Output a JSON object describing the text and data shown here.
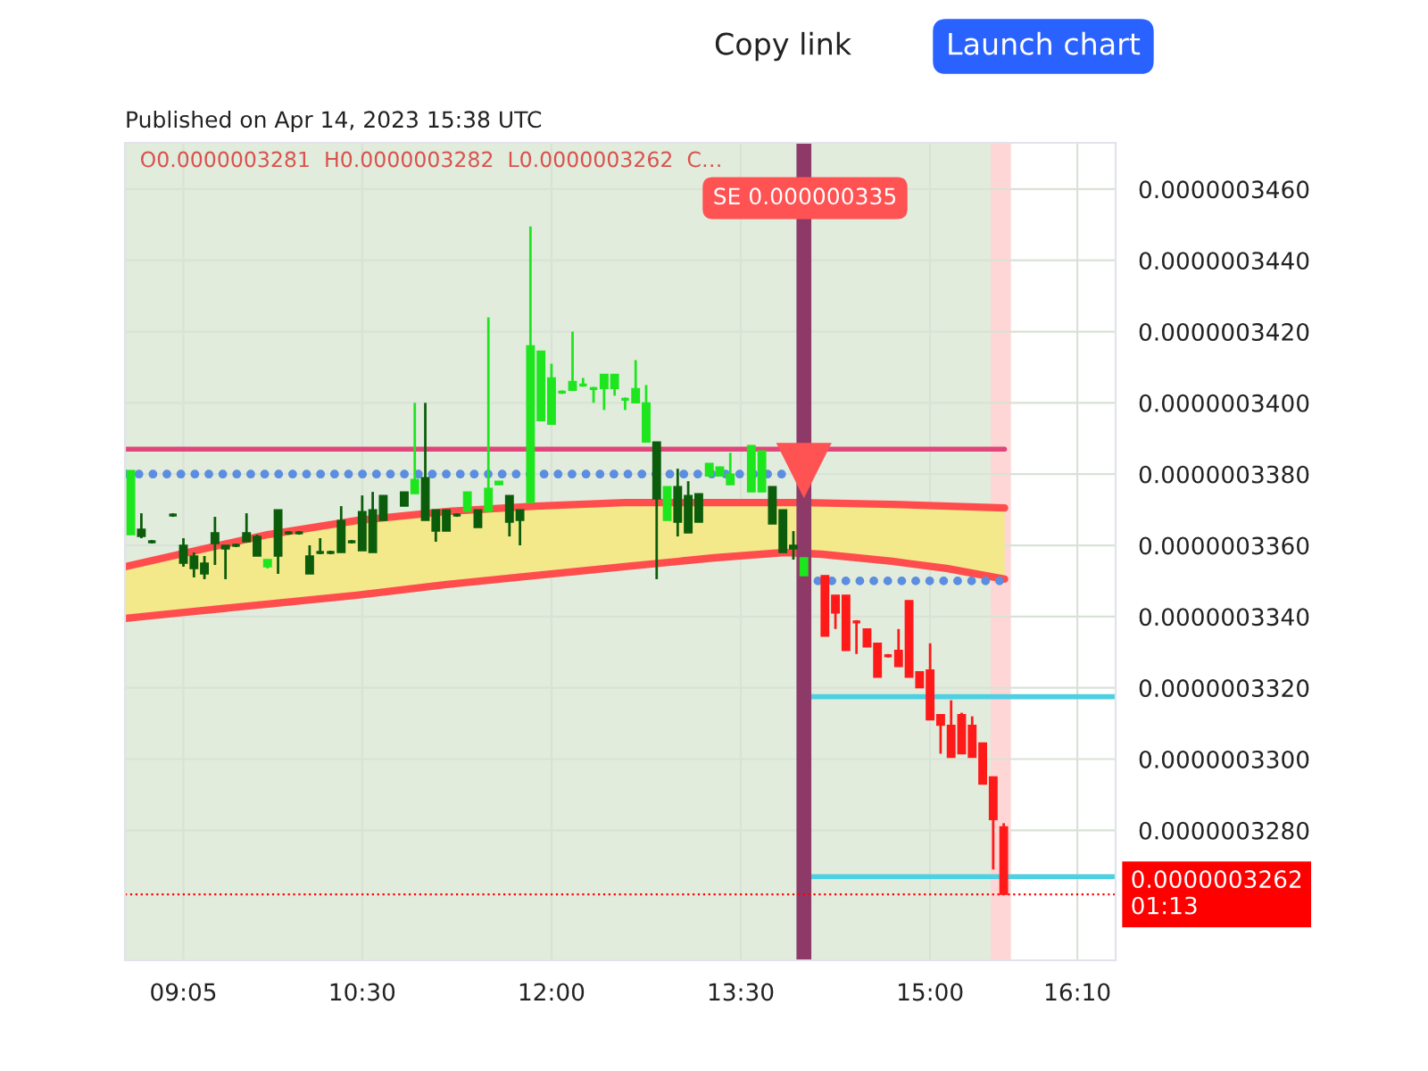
{
  "chart_data": {
    "type": "candlestick",
    "title": "O0.0000003281  H0.0000003282  L0.0000003262  C…",
    "annotations": [
      "Published on Apr 14, 2023 15:38 UTC",
      "Copy link",
      "Launch chart",
      "SE 0.000000335"
    ],
    "x": [
      8.6667,
      8.75,
      8.8333,
      9.0,
      9.0833,
      9.1667,
      9.25,
      9.3333,
      9.4167,
      9.5,
      9.5833,
      9.6667,
      9.75,
      9.8333,
      9.9167,
      10.0,
      10.0833,
      10.1667,
      10.25,
      10.3333,
      10.4167,
      10.5,
      10.5833,
      10.6667,
      10.8333,
      10.9167,
      11.0,
      11.0833,
      11.1667,
      11.25,
      11.3333,
      11.4167,
      11.5,
      11.5833,
      11.6667,
      11.75,
      11.8333,
      11.9167,
      12.0,
      12.0833,
      12.1667,
      12.25,
      12.3333,
      12.4167,
      12.5,
      12.5833,
      12.6667,
      12.75,
      12.8333,
      12.9167,
      13.0,
      13.0833,
      13.1667,
      13.25,
      13.3333,
      13.4167,
      13.5833,
      13.6667,
      13.75,
      13.8333,
      13.9167,
      14.0,
      14.1667,
      14.25,
      14.3333,
      14.4167,
      14.5,
      14.5833,
      14.6667,
      14.75,
      14.8333,
      14.9167,
      15.0,
      15.0833,
      15.1667,
      15.25,
      15.3333,
      15.4167,
      15.5,
      15.5833
    ],
    "ohlc": [
      [
        3.363e-07,
        3.381e-07,
        3.363e-07,
        3.381e-07
      ],
      [
        3.3645e-07,
        3.369e-07,
        3.362e-07,
        3.3625e-07
      ],
      [
        3.361e-07,
        3.3615e-07,
        3.3605e-07,
        3.361e-07
      ],
      [
        3.3685e-07,
        3.369e-07,
        3.368e-07,
        3.3685e-07
      ],
      [
        3.36e-07,
        3.362e-07,
        3.354e-07,
        3.355e-07
      ],
      [
        3.357e-07,
        3.358e-07,
        3.351e-07,
        3.3535e-07
      ],
      [
        3.355e-07,
        3.357e-07,
        3.3505e-07,
        3.352e-07
      ],
      [
        3.3635e-07,
        3.368e-07,
        3.3545e-07,
        3.3605e-07
      ],
      [
        3.36e-07,
        3.36e-07,
        3.3505e-07,
        3.359e-07
      ],
      [
        3.36e-07,
        3.3605e-07,
        3.3595e-07,
        3.36e-07
      ],
      [
        3.3635e-07,
        3.369e-07,
        3.361e-07,
        3.361e-07
      ],
      [
        3.3625e-07,
        3.363e-07,
        3.357e-07,
        3.357e-07
      ],
      [
        3.354e-07,
        3.356e-07,
        3.3535e-07,
        3.356e-07
      ],
      [
        3.37e-07,
        3.37e-07,
        3.352e-07,
        3.357e-07
      ],
      [
        3.3635e-07,
        3.364e-07,
        3.363e-07,
        3.3635e-07
      ],
      [
        3.3635e-07,
        3.364e-07,
        3.363e-07,
        3.3635e-07
      ],
      [
        3.357e-07,
        3.36e-07,
        3.352e-07,
        3.352e-07
      ],
      [
        3.358e-07,
        3.362e-07,
        3.3575e-07,
        3.358e-07
      ],
      [
        3.358e-07,
        3.3585e-07,
        3.3575e-07,
        3.358e-07
      ],
      [
        3.367e-07,
        3.371e-07,
        3.358e-07,
        3.358e-07
      ],
      [
        3.361e-07,
        3.3615e-07,
        3.3605e-07,
        3.361e-07
      ],
      [
        3.3695e-07,
        3.374e-07,
        3.3585e-07,
        3.3585e-07
      ],
      [
        3.37e-07,
        3.375e-07,
        3.358e-07,
        3.358e-07
      ],
      [
        3.374e-07,
        3.374e-07,
        3.367e-07,
        3.367e-07
      ],
      [
        3.375e-07,
        3.375e-07,
        3.371e-07,
        3.371e-07
      ],
      [
        3.3745e-07,
        3.4e-07,
        3.3745e-07,
        3.3785e-07
      ],
      [
        3.379e-07,
        3.4e-07,
        3.367e-07,
        3.367e-07
      ],
      [
        3.37e-07,
        3.37e-07,
        3.361e-07,
        3.364e-07
      ],
      [
        3.37e-07,
        3.37e-07,
        3.364e-07,
        3.364e-07
      ],
      [
        3.3685e-07,
        3.369e-07,
        3.368e-07,
        3.3685e-07
      ],
      [
        3.3695e-07,
        3.375e-07,
        3.3695e-07,
        3.375e-07
      ],
      [
        3.37e-07,
        3.37e-07,
        3.365e-07,
        3.365e-07
      ],
      [
        3.3695e-07,
        3.424e-07,
        3.3695e-07,
        3.376e-07
      ],
      [
        3.377e-07,
        3.378e-07,
        3.377e-07,
        3.378e-07
      ],
      [
        3.374e-07,
        3.374e-07,
        3.3625e-07,
        3.3665e-07
      ],
      [
        3.37e-07,
        3.37e-07,
        3.36e-07,
        3.367e-07
      ],
      [
        3.372e-07,
        3.4495e-07,
        3.372e-07,
        3.416e-07
      ],
      [
        3.395e-07,
        3.4145e-07,
        3.395e-07,
        3.4145e-07
      ],
      [
        3.394e-07,
        3.411e-07,
        3.394e-07,
        3.407e-07
      ],
      [
        3.403e-07,
        3.4035e-07,
        3.4025e-07,
        3.403e-07
      ],
      [
        3.4035e-07,
        3.42e-07,
        3.4035e-07,
        3.406e-07
      ],
      [
        3.405e-07,
        3.407e-07,
        3.4045e-07,
        3.405e-07
      ],
      [
        3.404e-07,
        3.4045e-07,
        3.4e-07,
        3.404e-07
      ],
      [
        3.404e-07,
        3.408e-07,
        3.398e-07,
        3.408e-07
      ],
      [
        3.404e-07,
        3.408e-07,
        3.402e-07,
        3.408e-07
      ],
      [
        3.401e-07,
        3.4015e-07,
        3.398e-07,
        3.401e-07
      ],
      [
        3.4e-07,
        3.412e-07,
        3.4e-07,
        3.404e-07
      ],
      [
        3.389e-07,
        3.405e-07,
        3.389e-07,
        3.4e-07
      ],
      [
        3.389e-07,
        3.389e-07,
        3.3505e-07,
        3.373e-07
      ],
      [
        3.367e-07,
        3.3765e-07,
        3.367e-07,
        3.3765e-07
      ],
      [
        3.3765e-07,
        3.3815e-07,
        3.3625e-07,
        3.3665e-07
      ],
      [
        3.374e-07,
        3.378e-07,
        3.3635e-07,
        3.3635e-07
      ],
      [
        3.3745e-07,
        3.3745e-07,
        3.3665e-07,
        3.3665e-07
      ],
      [
        3.3795e-07,
        3.383e-07,
        3.3795e-07,
        3.383e-07
      ],
      [
        3.3795e-07,
        3.382e-07,
        3.3795e-07,
        3.382e-07
      ],
      [
        3.377e-07,
        3.386e-07,
        3.377e-07,
        3.38e-07
      ],
      [
        3.375e-07,
        3.388e-07,
        3.375e-07,
        3.388e-07
      ],
      [
        3.375e-07,
        3.3865e-07,
        3.375e-07,
        3.3865e-07
      ],
      [
        3.3765e-07,
        3.3765e-07,
        3.366e-07,
        3.366e-07
      ],
      [
        3.37e-07,
        3.37e-07,
        3.358e-07,
        3.358e-07
      ],
      [
        3.36e-07,
        3.364e-07,
        3.356e-07,
        3.359e-07
      ],
      [
        3.3515e-07,
        3.3565e-07,
        3.3515e-07,
        3.3565e-07
      ],
      [
        3.3515e-07,
        3.3515e-07,
        3.3345e-07,
        3.3345e-07
      ],
      [
        3.346e-07,
        3.346e-07,
        3.3365e-07,
        3.341e-07
      ],
      [
        3.346e-07,
        3.346e-07,
        3.3305e-07,
        3.3305e-07
      ],
      [
        3.3385e-07,
        3.339e-07,
        3.3295e-07,
        3.3385e-07
      ],
      [
        3.3365e-07,
        3.3365e-07,
        3.3315e-07,
        3.3315e-07
      ],
      [
        3.3325e-07,
        3.3325e-07,
        3.323e-07,
        3.323e-07
      ],
      [
        3.329e-07,
        3.3295e-07,
        3.3285e-07,
        3.329e-07
      ],
      [
        3.3305e-07,
        3.3365e-07,
        3.326e-07,
        3.326e-07
      ],
      [
        3.3445e-07,
        3.3445e-07,
        3.323e-07,
        3.323e-07
      ],
      [
        3.3245e-07,
        3.3245e-07,
        3.32e-07,
        3.32e-07
      ],
      [
        3.325e-07,
        3.3325e-07,
        3.311e-07,
        3.311e-07
      ],
      [
        3.3125e-07,
        3.3125e-07,
        3.3015e-07,
        3.3095e-07
      ],
      [
        3.3095e-07,
        3.3165e-07,
        3.3005e-07,
        3.3005e-07
      ],
      [
        3.3125e-07,
        3.313e-07,
        3.3015e-07,
        3.3015e-07
      ],
      [
        3.3095e-07,
        3.312e-07,
        3.3005e-07,
        3.3005e-07
      ],
      [
        3.3045e-07,
        3.3045e-07,
        3.293e-07,
        3.293e-07
      ],
      [
        3.295e-07,
        3.295e-07,
        3.269e-07,
        3.283e-07
      ],
      [
        3.281e-07,
        3.282e-07,
        3.262e-07,
        3.262e-07
      ]
    ],
    "colors": [
      "#1ee61e",
      "#0b5d0b",
      "#0b5d0b",
      "#0b5d0b",
      "#0b5d0b",
      "#0b5d0b",
      "#0b5d0b",
      "#0b5d0b",
      "#0b5d0b",
      "#0b5d0b",
      "#0b5d0b",
      "#0b5d0b",
      "#1ee61e",
      "#0b5d0b",
      "#0b5d0b",
      "#0b5d0b",
      "#0b5d0b",
      "#0b5d0b",
      "#0b5d0b",
      "#0b5d0b",
      "#0b5d0b",
      "#0b5d0b",
      "#0b5d0b",
      "#0b5d0b",
      "#0b5d0b",
      "#1ee61e",
      "#0b5d0b",
      "#0b5d0b",
      "#0b5d0b",
      "#0b5d0b",
      "#1ee61e",
      "#0b5d0b",
      "#1ee61e",
      "#1ee61e",
      "#0b5d0b",
      "#0b5d0b",
      "#1ee61e",
      "#1ee61e",
      "#1ee61e",
      "#1ee61e",
      "#1ee61e",
      "#1ee61e",
      "#1ee61e",
      "#1ee61e",
      "#1ee61e",
      "#1ee61e",
      "#1ee61e",
      "#1ee61e",
      "#0b5d0b",
      "#1ee61e",
      "#0b5d0b",
      "#0b5d0b",
      "#0b5d0b",
      "#1ee61e",
      "#1ee61e",
      "#1ee61e",
      "#1ee61e",
      "#1ee61e",
      "#0b5d0b",
      "#0b5d0b",
      "#0b5d0b",
      "#1ee61e",
      "#ff1a1a",
      "#ff1a1a",
      "#ff1a1a",
      "#ff1a1a",
      "#ff1a1a",
      "#ff1a1a",
      "#ff1a1a",
      "#ff1a1a",
      "#ff1a1a",
      "#ff1a1a",
      "#ff1a1a",
      "#ff1a1a",
      "#ff1a1a",
      "#ff1a1a",
      "#ff1a1a",
      "#ff1a1a",
      "#ff1a1a",
      "#ff1a1a"
    ],
    "series": [
      {
        "type": "line",
        "color": "#ff4d4d",
        "x": [
          8.62,
          9.18,
          9.75,
          10.46,
          11.17,
          11.87,
          12.58,
          13.29,
          14.0,
          14.7,
          15.59
        ],
        "values": [
          3.354e-07,
          3.3585e-07,
          3.363e-07,
          3.367e-07,
          3.3695e-07,
          3.371e-07,
          3.372e-07,
          3.372e-07,
          3.372e-07,
          3.3715e-07,
          3.3705e-07
        ],
        "lower": [
          3.3395e-07,
          3.3415e-07,
          3.3435e-07,
          3.346e-07,
          3.349e-07,
          3.3515e-07,
          3.354e-07,
          3.3565e-07,
          3.3575e-07,
          3.3555e-07,
          3.3505e-07
        ],
        "upper": [
          3.354e-07,
          3.3585e-07,
          3.363e-07,
          3.367e-07,
          3.3695e-07,
          3.371e-07,
          3.372e-07,
          3.372e-07,
          3.372e-07,
          3.3715e-07,
          3.3705e-07
        ]
      },
      {
        "type": "line",
        "color": "#ff4d4d",
        "x": [
          8.62,
          9.18,
          9.75,
          10.46,
          11.17,
          11.87,
          12.58,
          13.29,
          13.85,
          14.14,
          14.7,
          15.13,
          15.59
        ],
        "values": [
          3.3395e-07,
          3.3415e-07,
          3.3435e-07,
          3.346e-07,
          3.349e-07,
          3.3515e-07,
          3.354e-07,
          3.3565e-07,
          3.358e-07,
          3.3575e-07,
          3.3555e-07,
          3.3535e-07,
          3.3505e-07
        ]
      },
      {
        "type": "line",
        "color": "#e0457b",
        "x": [
          8.62,
          15.59
        ],
        "values": [
          3.387e-07,
          3.387e-07
        ]
      },
      {
        "type": "line",
        "color": "#5b8de0",
        "line_style": "dotted",
        "x": [
          8.62,
          13.85,
          13.92,
          14.0,
          15.59
        ],
        "values": [
          3.38e-07,
          3.38e-07,
          null,
          3.35e-07,
          3.35e-07
        ]
      },
      {
        "type": "line",
        "color": "#4dd0e1",
        "x": [
          14.0,
          16.47
        ],
        "values": [
          3.3175e-07,
          3.3175e-07
        ]
      },
      {
        "type": "line",
        "color": "#4dd0e1",
        "x": [
          14.0,
          16.47
        ],
        "values": [
          3.267e-07,
          3.267e-07
        ]
      },
      {
        "type": "scatter",
        "color": "#ff5252",
        "marker": "triangle",
        "x": [
          14.0
        ],
        "values": [
          3.381e-07
        ]
      }
    ],
    "ref_lines": [
      {
        "axis": "x",
        "value": 14.0,
        "color": "#8e3a68"
      },
      {
        "axis": "y",
        "value": 3.262e-07,
        "label": "0.0000003262\n01:13",
        "color": "#ff0000",
        "line_style": "dotted"
      }
    ],
    "bands": [
      {
        "axis": "x",
        "from": 8.62,
        "to": 15.48,
        "color": "#e1ecdc"
      },
      {
        "axis": "x",
        "from": 15.48,
        "to": 15.64,
        "color": "#ffd6d6"
      }
    ],
    "xlim": [
      8.62,
      16.47
    ],
    "xticks": [
      {
        "value": 9.0833,
        "label": "09:05"
      },
      {
        "value": 10.5,
        "label": "10:30"
      },
      {
        "value": 12,
        "label": "12:00"
      },
      {
        "value": 13.5,
        "label": "13:30"
      },
      {
        "value": 15,
        "label": "15:00"
      },
      {
        "value": 16.1667,
        "label": "16:10"
      }
    ],
    "ylim": [
      3.2435e-07,
      3.473e-07
    ],
    "yticks": [
      {
        "value": 3.28e-07,
        "label": "0.0000003280"
      },
      {
        "value": 3.3e-07,
        "label": "0.0000003300"
      },
      {
        "value": 3.32e-07,
        "label": "0.0000003320"
      },
      {
        "value": 3.34e-07,
        "label": "0.0000003340"
      },
      {
        "value": 3.36e-07,
        "label": "0.0000003360"
      },
      {
        "value": 3.38e-07,
        "label": "0.0000003380"
      },
      {
        "value": 3.4e-07,
        "label": "0.0000003400"
      },
      {
        "value": 3.42e-07,
        "label": "0.0000003420"
      },
      {
        "value": 3.44e-07,
        "label": "0.0000003440"
      },
      {
        "value": 3.46e-07,
        "label": "0.0000003460"
      }
    ],
    "grid": true
  }
}
